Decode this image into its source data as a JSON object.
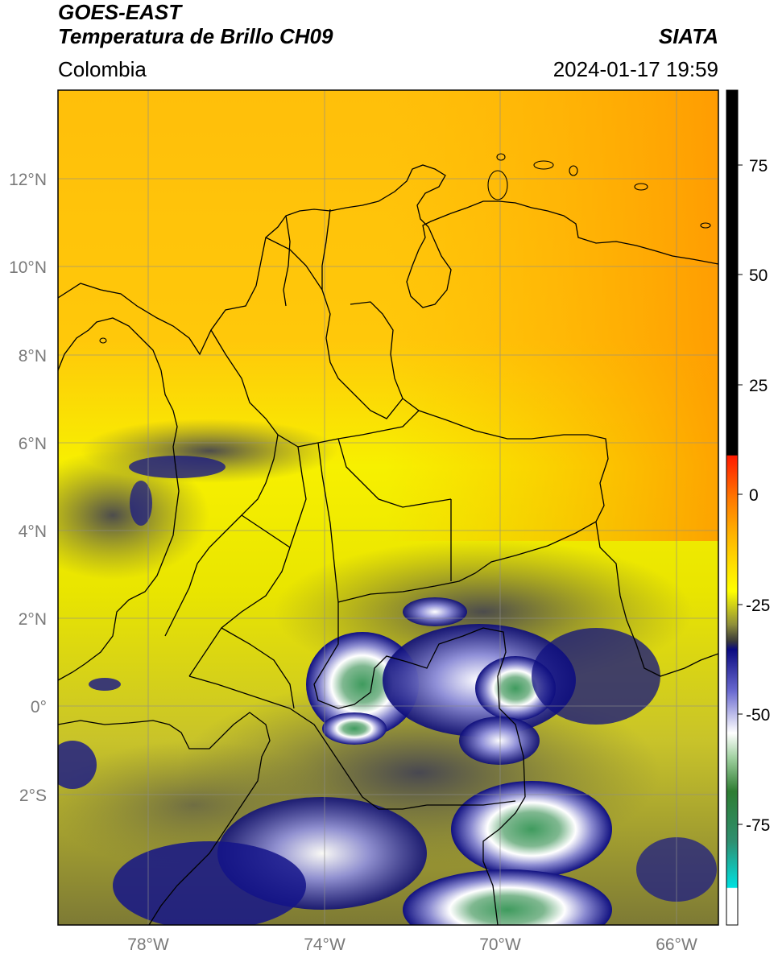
{
  "header": {
    "title_line1": "GOES-EAST",
    "title_line2": "Temperatura de Brillo CH09",
    "region": "Colombia",
    "source": "SIATA",
    "datetime": "2024-01-17 19:59"
  },
  "map": {
    "lon_range": [
      -80.0,
      -65.0
    ],
    "lat_range": [
      -5.0,
      14.0
    ],
    "lon_ticks": [
      "78°W",
      "74°W",
      "70°W",
      "66°W"
    ],
    "lat_ticks": [
      "12°N",
      "10°N",
      "8°N",
      "6°N",
      "4°N",
      "2°N",
      "0°",
      "2°S"
    ],
    "grid": true
  },
  "colorbar": {
    "ticks": [
      "75",
      "50",
      "25",
      "0",
      "-25",
      "-50",
      "-75"
    ],
    "range": [
      -100,
      90
    ],
    "colors": {
      "warm_top": "#000000",
      "red": "#ff0000",
      "orange": "#ff9900",
      "yellow": "#ffff00",
      "olive": "#9a9a3a",
      "dark": "#3a3a3a",
      "navy": "#0a0a80",
      "white": "#ffffff",
      "green": "#2e7d32",
      "cyan": "#00e5e5"
    }
  }
}
